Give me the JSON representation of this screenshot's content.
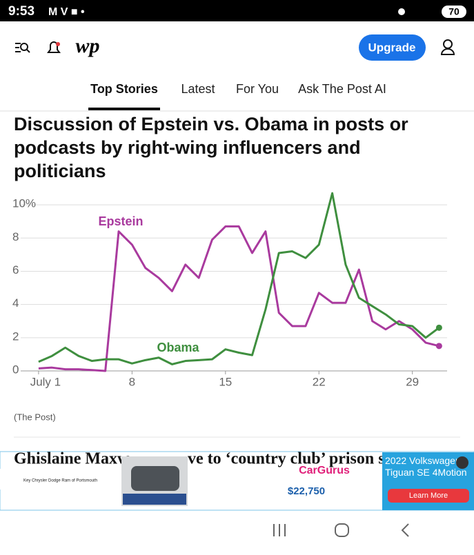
{
  "status_bar": {
    "time": "9:53",
    "battery": "70"
  },
  "header": {
    "logo": "wp",
    "upgrade": "Upgrade"
  },
  "tabs": [
    "Top Stories",
    "Latest",
    "For You",
    "Ask The Post AI"
  ],
  "chart_data": {
    "type": "line",
    "title": "Discussion of Epstein vs. Obama in posts or podcasts by right-wing influencers and politicians",
    "source": "(The Post)",
    "x": [
      1,
      2,
      3,
      4,
      5,
      6,
      7,
      8,
      9,
      10,
      11,
      12,
      13,
      14,
      15,
      16,
      17,
      18,
      19,
      20,
      21,
      22,
      23,
      24,
      25,
      26,
      27,
      28,
      29,
      30,
      31
    ],
    "xlim": [
      -0.34,
      31.6
    ],
    "xticks": [
      {
        "value": 1,
        "label": "July 1"
      },
      8,
      15,
      22,
      29
    ],
    "ylim": [
      0,
      11
    ],
    "yticks": [
      {
        "value": 10,
        "label": "10%"
      },
      8,
      6,
      4,
      2,
      0
    ],
    "grid": true,
    "series": [
      {
        "name": "Epstein",
        "color": "#a93a9e",
        "values": [
          0.15,
          0.2,
          0.1,
          0.1,
          0.05,
          0,
          8.4,
          7.6,
          6.2,
          5.6,
          4.8,
          6.4,
          5.6,
          7.9,
          8.7,
          8.7,
          7.1,
          8.4,
          3.5,
          2.7,
          2.7,
          4.7,
          4.1,
          4.1,
          6.1,
          3.0,
          2.5,
          3.0,
          2.5,
          1.7,
          1.5
        ]
      },
      {
        "name": "Obama",
        "color": "#3f8f3f",
        "values": [
          0.55,
          0.9,
          1.4,
          0.9,
          0.6,
          0.7,
          0.7,
          0.45,
          0.65,
          0.8,
          0.4,
          0.6,
          0.65,
          0.7,
          1.3,
          1.1,
          0.95,
          3.7,
          7.1,
          7.2,
          6.8,
          7.6,
          10.7,
          6.4,
          4.4,
          3.9,
          3.4,
          2.8,
          2.7,
          2.0,
          2.6
        ]
      }
    ]
  },
  "next_story": {
    "headline_start": "Ghislaine Maxw",
    "headline_end": "ve to ‘country club’ prison s"
  },
  "ad": {
    "dealer": "Key Chrysler Dodge Ram of Portsmouth",
    "brand": "CarGurus",
    "price": "$22,750",
    "car": "2022 Volkswagen Tiguan SE 4Motion",
    "cta": "Learn More"
  }
}
